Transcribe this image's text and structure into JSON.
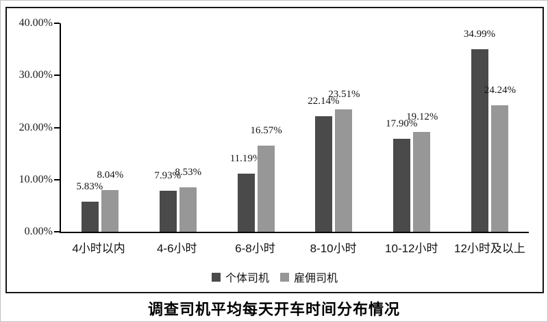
{
  "chart_data": {
    "type": "bar",
    "title": "调查司机平均每天开车时间分布情况",
    "categories": [
      "4小时以内",
      "4-6小时",
      "6-8小时",
      "8-10小时",
      "10-12小时",
      "12小时及以上"
    ],
    "series": [
      {
        "name": "个体司机",
        "color": "#4a4a4a",
        "values": [
          5.83,
          7.93,
          11.19,
          22.14,
          17.9,
          34.99
        ],
        "labels": [
          "5.83%",
          "7.93%",
          "11.19%",
          "22.14%",
          "17.90%",
          "34.99%"
        ]
      },
      {
        "name": "雇佣司机",
        "color": "#979797",
        "values": [
          8.04,
          8.53,
          16.57,
          23.51,
          19.12,
          24.24
        ],
        "labels": [
          "8.04%",
          "8.53%",
          "16.57%",
          "23.51%",
          "19.12%",
          "24.24%"
        ]
      }
    ],
    "y_axis": {
      "tick_labels": [
        "40.00%",
        "30.00%",
        "20.00%",
        "10.00%",
        "0.00%"
      ],
      "tick_values": [
        40,
        30,
        20,
        10,
        0
      ],
      "ylim": [
        0,
        40
      ]
    },
    "legend_position": "bottom",
    "grid": false
  }
}
